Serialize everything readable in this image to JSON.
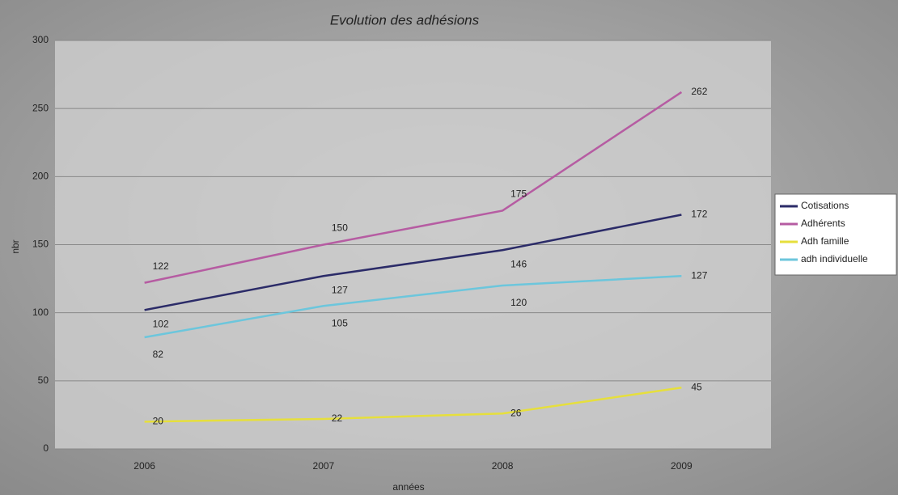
{
  "chart_data": {
    "type": "line",
    "title": "Evolution des adhésions",
    "x_label": "années",
    "y_label": "nbr",
    "categories": [
      "2006",
      "2007",
      "2008",
      "2009"
    ],
    "series": [
      {
        "name": "Cotisations",
        "color": "#2b2b68",
        "values": [
          102,
          127,
          146,
          172
        ]
      },
      {
        "name": "Adhérents",
        "color": "#b65ca2",
        "values": [
          122,
          150,
          175,
          262
        ]
      },
      {
        "name": "Adh famille",
        "color": "#e6df3c",
        "values": [
          20,
          22,
          26,
          45
        ]
      },
      {
        "name": "adh individuelle",
        "color": "#6cc6dc",
        "values": [
          82,
          105,
          120,
          127
        ]
      }
    ],
    "ylim": [
      0,
      300
    ],
    "yticks": [
      0,
      50,
      100,
      150,
      200,
      250,
      300
    ],
    "grid": true,
    "legend": "right"
  }
}
